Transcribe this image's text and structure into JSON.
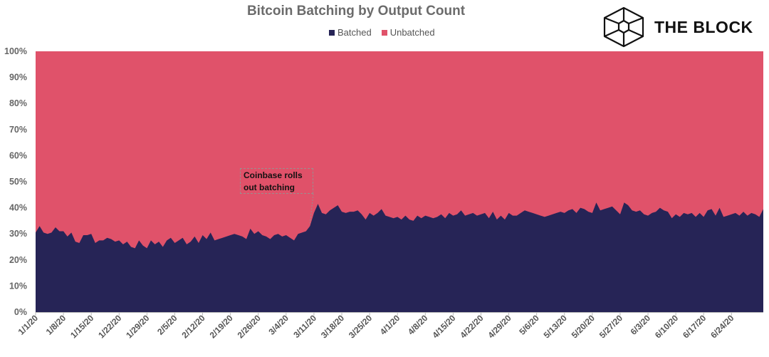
{
  "chart_data": {
    "type": "area",
    "stacked": true,
    "normalized": true,
    "title": "Bitcoin Batching by Output Count",
    "xlabel": "",
    "ylabel": "",
    "ylim": [
      0,
      100
    ],
    "yticks": [
      "0%",
      "10%",
      "20%",
      "30%",
      "40%",
      "50%",
      "60%",
      "70%",
      "80%",
      "90%",
      "100%"
    ],
    "xticks": [
      "1/1/20",
      "1/8/20",
      "1/15/20",
      "1/22/20",
      "1/29/20",
      "2/5/20",
      "2/12/20",
      "2/19/20",
      "2/26/20",
      "3/4/20",
      "3/11/20",
      "3/18/20",
      "3/25/20",
      "4/1/20",
      "4/8/20",
      "4/15/20",
      "4/22/20",
      "4/29/20",
      "5/6/20",
      "5/13/20",
      "5/20/20",
      "5/27/20",
      "6/3/20",
      "6/10/20",
      "6/17/20",
      "6/24/20"
    ],
    "legend": "top-center",
    "series": [
      {
        "name": "Batched",
        "color": "#262456",
        "values": [
          30.5,
          33.0,
          30.5,
          30.0,
          30.5,
          32.5,
          31.0,
          31.0,
          29.0,
          30.5,
          27.0,
          26.5,
          29.5,
          29.5,
          30.0,
          26.5,
          27.5,
          27.5,
          28.5,
          28.0,
          27.0,
          27.5,
          26.0,
          27.0,
          25.0,
          24.5,
          27.5,
          25.5,
          24.5,
          27.5,
          26.0,
          27.0,
          25.0,
          27.5,
          28.5,
          26.5,
          27.5,
          28.5,
          26.0,
          27.0,
          29.0,
          26.5,
          29.5,
          28.0,
          30.5,
          27.5,
          28.0,
          28.5,
          29.0,
          29.5,
          30.0,
          29.5,
          29.0,
          28.0,
          32.0,
          30.0,
          31.0,
          29.5,
          29.0,
          28.0,
          29.5,
          30.0,
          29.0,
          29.5,
          28.5,
          27.5,
          30.0,
          30.5,
          31.0,
          33.0,
          38.0,
          41.5,
          38.0,
          37.5,
          39.0,
          40.0,
          41.0,
          38.5,
          38.0,
          38.5,
          38.5,
          39.0,
          37.5,
          35.5,
          38.0,
          37.0,
          38.0,
          39.5,
          37.0,
          36.5,
          36.0,
          36.5,
          35.5,
          37.0,
          35.5,
          35.0,
          37.0,
          36.0,
          37.0,
          36.5,
          36.0,
          36.5,
          37.5,
          36.0,
          38.0,
          37.0,
          37.5,
          39.0,
          37.0,
          37.5,
          38.0,
          37.0,
          37.5,
          38.0,
          36.0,
          38.5,
          35.5,
          37.0,
          35.5,
          38.0,
          37.0,
          37.0,
          38.0,
          39.0,
          38.5,
          38.0,
          37.5,
          37.0,
          36.5,
          37.0,
          37.5,
          38.0,
          38.5,
          38.0,
          39.0,
          39.5,
          38.0,
          40.0,
          39.5,
          38.5,
          38.0,
          42.0,
          39.0,
          39.5,
          40.0,
          40.5,
          39.0,
          37.5,
          42.0,
          41.0,
          39.0,
          38.5,
          39.0,
          37.5,
          37.0,
          38.0,
          38.5,
          40.0,
          39.0,
          38.5,
          36.0,
          37.5,
          36.5,
          38.0,
          37.5,
          38.0,
          36.5,
          38.0,
          36.5,
          39.0,
          39.5,
          37.0,
          40.0,
          36.5,
          37.0,
          37.5,
          38.0,
          37.0,
          38.5,
          37.0,
          38.0,
          37.5,
          36.5,
          39.5
        ]
      },
      {
        "name": "Unbatched",
        "color": "#e0526a"
      }
    ],
    "annotations": [
      {
        "text_lines": [
          "Coinbase rolls",
          "out batching"
        ],
        "date": "3/11/20"
      }
    ]
  },
  "logo": {
    "text": "THE BLOCK"
  }
}
